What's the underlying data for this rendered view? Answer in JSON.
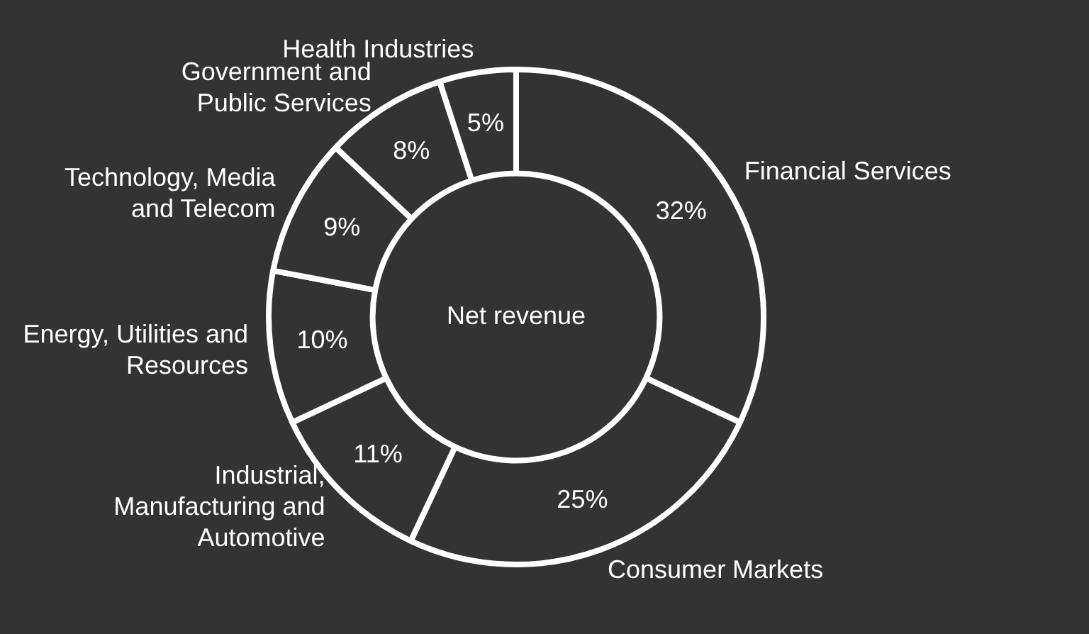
{
  "chart_data": {
    "type": "donut",
    "categories": [
      "Financial Services",
      "Consumer Markets",
      "Industrial, Manufacturing and Automotive",
      "Energy, Utilities and Resources",
      "Technology, Media and Telecom",
      "Government and Public Services",
      "Health Industries"
    ],
    "values": [
      32,
      25,
      11,
      10,
      9,
      8,
      5
    ],
    "colors": [
      "#333333",
      "#333333",
      "#333333",
      "#333333",
      "#333333",
      "#333333",
      "#333333"
    ],
    "value_labels": [
      "32%",
      "25%",
      "11%",
      "10%",
      "9%",
      "8%",
      "5%"
    ],
    "annotations": [
      "Net revenue"
    ],
    "legend": false
  }
}
